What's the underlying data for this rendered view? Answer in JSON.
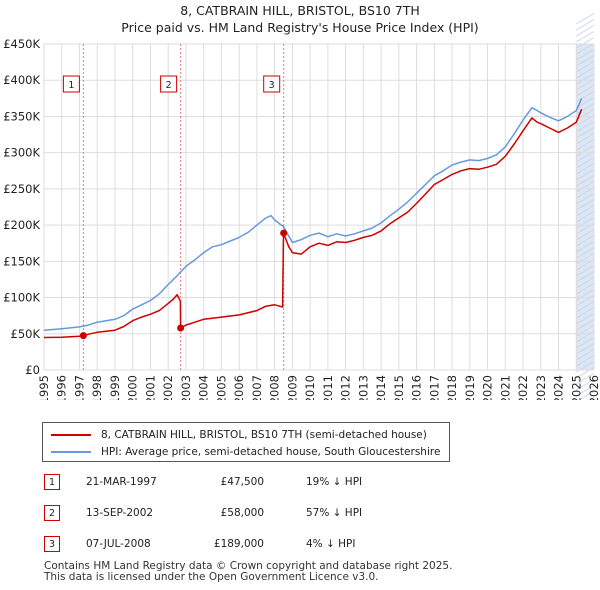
{
  "title_line1": "8, CATBRAIN HILL, BRISTOL, BS10 7TH",
  "title_line2": "Price paid vs. HM Land Registry's House Price Index (HPI)",
  "colors": {
    "property": "#cc0000",
    "hpi": "#6699dd",
    "band": "#dde6f4",
    "grid": "#dddddd"
  },
  "chart_data": {
    "type": "line",
    "x_range": [
      1995,
      2026
    ],
    "y_range": [
      0,
      450000
    ],
    "x_ticks": [
      1995,
      1996,
      1997,
      1998,
      1999,
      2000,
      2001,
      2002,
      2003,
      2004,
      2005,
      2006,
      2007,
      2008,
      2009,
      2010,
      2011,
      2012,
      2013,
      2014,
      2015,
      2016,
      2017,
      2018,
      2019,
      2020,
      2021,
      2022,
      2023,
      2024,
      2025,
      2026
    ],
    "y_ticks": [
      {
        "value": 0,
        "label": "£0"
      },
      {
        "value": 50000,
        "label": "£50K"
      },
      {
        "value": 100000,
        "label": "£100K"
      },
      {
        "value": 150000,
        "label": "£150K"
      },
      {
        "value": 200000,
        "label": "£200K"
      },
      {
        "value": 250000,
        "label": "£250K"
      },
      {
        "value": 300000,
        "label": "£300K"
      },
      {
        "value": 350000,
        "label": "£350K"
      },
      {
        "value": 400000,
        "label": "£400K"
      },
      {
        "value": 450000,
        "label": "£450K"
      }
    ],
    "shaded_band": [
      2025.0,
      2026.0
    ],
    "sales": [
      {
        "n": "1",
        "x": 1997.22,
        "y": 47500
      },
      {
        "n": "2",
        "x": 2002.7,
        "y": 58000
      },
      {
        "n": "3",
        "x": 2008.51,
        "y": 189000
      }
    ],
    "series": [
      {
        "name": "8, CATBRAIN HILL, BRISTOL, BS10 7TH (semi-detached house)",
        "points": [
          [
            1995.0,
            44800
          ],
          [
            1996.0,
            45100
          ],
          [
            1997.0,
            46500
          ],
          [
            1997.22,
            47500
          ],
          [
            1997.6,
            50000
          ],
          [
            1998.0,
            52000
          ],
          [
            1999.0,
            55000
          ],
          [
            1999.5,
            60000
          ],
          [
            2000.0,
            68000
          ],
          [
            2000.5,
            73000
          ],
          [
            2001.0,
            77000
          ],
          [
            2001.5,
            82000
          ],
          [
            2002.0,
            92000
          ],
          [
            2002.3,
            98000
          ],
          [
            2002.5,
            104000
          ],
          [
            2002.69,
            95000
          ],
          [
            2002.7,
            58000
          ],
          [
            2003.0,
            62000
          ],
          [
            2003.5,
            66000
          ],
          [
            2004.0,
            70000
          ],
          [
            2005.0,
            73000
          ],
          [
            2006.0,
            76000
          ],
          [
            2007.0,
            82000
          ],
          [
            2007.5,
            88000
          ],
          [
            2008.0,
            90000
          ],
          [
            2008.45,
            87000
          ],
          [
            2008.5,
            189000
          ],
          [
            2008.8,
            170000
          ],
          [
            2009.0,
            162000
          ],
          [
            2009.5,
            160000
          ],
          [
            2010.0,
            170000
          ],
          [
            2010.5,
            175000
          ],
          [
            2011.0,
            172000
          ],
          [
            2011.5,
            177000
          ],
          [
            2012.0,
            176000
          ],
          [
            2012.5,
            179000
          ],
          [
            2013.0,
            183000
          ],
          [
            2013.5,
            186000
          ],
          [
            2014.0,
            192000
          ],
          [
            2014.5,
            202000
          ],
          [
            2015.0,
            210000
          ],
          [
            2015.5,
            218000
          ],
          [
            2016.0,
            230000
          ],
          [
            2016.5,
            243000
          ],
          [
            2017.0,
            256000
          ],
          [
            2017.5,
            263000
          ],
          [
            2018.0,
            270000
          ],
          [
            2018.5,
            275000
          ],
          [
            2019.0,
            278000
          ],
          [
            2019.5,
            277000
          ],
          [
            2020.0,
            280000
          ],
          [
            2020.5,
            284000
          ],
          [
            2021.0,
            295000
          ],
          [
            2021.5,
            312000
          ],
          [
            2022.0,
            330000
          ],
          [
            2022.5,
            348000
          ],
          [
            2022.8,
            342000
          ],
          [
            2023.0,
            340000
          ],
          [
            2023.5,
            334000
          ],
          [
            2024.0,
            328000
          ],
          [
            2024.5,
            334000
          ],
          [
            2025.0,
            342000
          ],
          [
            2025.3,
            360000
          ]
        ]
      },
      {
        "name": "HPI: Average price, semi-detached house, South Gloucestershire",
        "points": [
          [
            1995.0,
            55000
          ],
          [
            1996.0,
            57000
          ],
          [
            1997.0,
            59500
          ],
          [
            1997.5,
            62000
          ],
          [
            1998.0,
            66000
          ],
          [
            1999.0,
            70000
          ],
          [
            1999.5,
            75000
          ],
          [
            2000.0,
            84000
          ],
          [
            2000.5,
            90000
          ],
          [
            2001.0,
            96000
          ],
          [
            2001.5,
            105000
          ],
          [
            2002.0,
            118000
          ],
          [
            2002.5,
            130000
          ],
          [
            2003.0,
            143000
          ],
          [
            2003.5,
            152000
          ],
          [
            2004.0,
            162000
          ],
          [
            2004.5,
            170000
          ],
          [
            2005.0,
            173000
          ],
          [
            2005.5,
            178000
          ],
          [
            2006.0,
            183000
          ],
          [
            2006.5,
            190000
          ],
          [
            2007.0,
            200000
          ],
          [
            2007.5,
            210000
          ],
          [
            2007.8,
            213000
          ],
          [
            2008.0,
            207000
          ],
          [
            2008.5,
            198000
          ],
          [
            2009.0,
            176000
          ],
          [
            2009.5,
            180000
          ],
          [
            2010.0,
            186000
          ],
          [
            2010.5,
            189000
          ],
          [
            2011.0,
            184000
          ],
          [
            2011.5,
            188000
          ],
          [
            2012.0,
            185000
          ],
          [
            2012.5,
            188000
          ],
          [
            2013.0,
            192000
          ],
          [
            2013.5,
            196000
          ],
          [
            2014.0,
            203000
          ],
          [
            2014.5,
            213000
          ],
          [
            2015.0,
            222000
          ],
          [
            2015.5,
            232000
          ],
          [
            2016.0,
            244000
          ],
          [
            2016.5,
            256000
          ],
          [
            2017.0,
            268000
          ],
          [
            2017.5,
            275000
          ],
          [
            2018.0,
            283000
          ],
          [
            2018.5,
            287000
          ],
          [
            2019.0,
            290000
          ],
          [
            2019.5,
            289000
          ],
          [
            2020.0,
            292000
          ],
          [
            2020.5,
            297000
          ],
          [
            2021.0,
            308000
          ],
          [
            2021.5,
            326000
          ],
          [
            2022.0,
            345000
          ],
          [
            2022.5,
            362000
          ],
          [
            2022.8,
            358000
          ],
          [
            2023.0,
            355000
          ],
          [
            2023.5,
            349000
          ],
          [
            2024.0,
            344000
          ],
          [
            2024.5,
            350000
          ],
          [
            2025.0,
            358000
          ],
          [
            2025.3,
            375000
          ]
        ]
      }
    ]
  },
  "legend": {
    "property_label": "8, CATBRAIN HILL, BRISTOL, BS10 7TH (semi-detached house)",
    "hpi_label": "HPI: Average price, semi-detached house, South Gloucestershire"
  },
  "transactions": [
    {
      "n": "1",
      "date": "21-MAR-1997",
      "price": "£47,500",
      "hpi": "19% ↓ HPI"
    },
    {
      "n": "2",
      "date": "13-SEP-2002",
      "price": "£58,000",
      "hpi": "57% ↓ HPI"
    },
    {
      "n": "3",
      "date": "07-JUL-2008",
      "price": "£189,000",
      "hpi": "4% ↓ HPI"
    }
  ],
  "footer_line1": "Contains HM Land Registry data © Crown copyright and database right 2025.",
  "footer_line2": "This data is licensed under the Open Government Licence v3.0."
}
